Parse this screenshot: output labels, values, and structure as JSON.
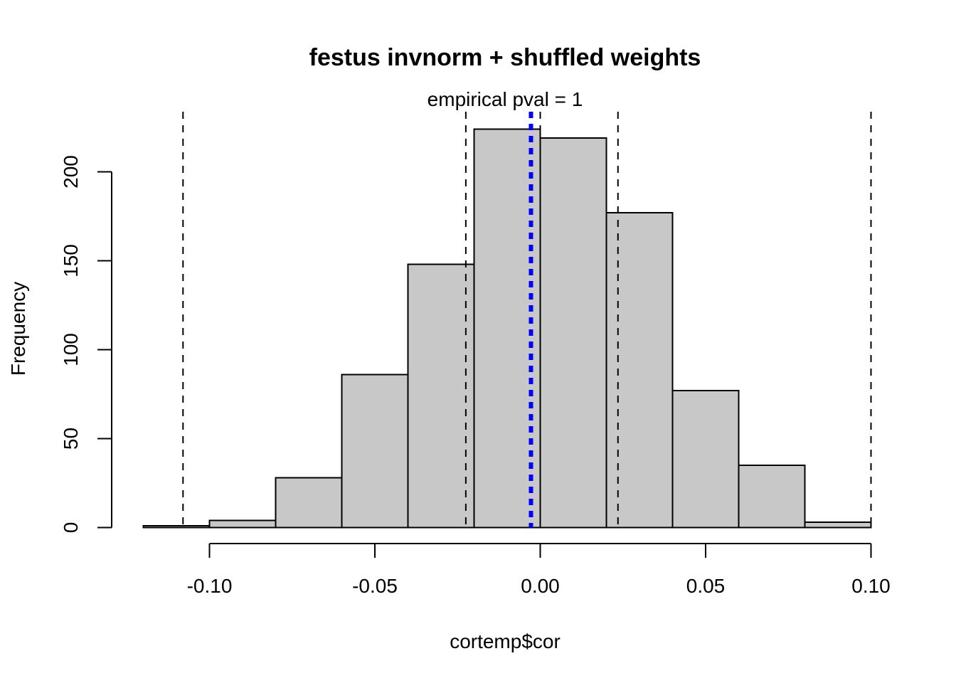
{
  "chart_data": {
    "type": "bar",
    "title": "festus invnorm + shuffled weights",
    "subtitle": "empirical pval = 1",
    "xlabel": "cortemp$cor",
    "ylabel": "Frequency",
    "bins": [
      {
        "start": -0.12,
        "end": -0.1,
        "count": 1
      },
      {
        "start": -0.1,
        "end": -0.08,
        "count": 4
      },
      {
        "start": -0.08,
        "end": -0.06,
        "count": 28
      },
      {
        "start": -0.06,
        "end": -0.04,
        "count": 86
      },
      {
        "start": -0.04,
        "end": -0.02,
        "count": 148
      },
      {
        "start": -0.02,
        "end": 0.0,
        "count": 224
      },
      {
        "start": 0.0,
        "end": 0.02,
        "count": 219
      },
      {
        "start": 0.02,
        "end": 0.04,
        "count": 177
      },
      {
        "start": 0.04,
        "end": 0.06,
        "count": 77
      },
      {
        "start": 0.06,
        "end": 0.08,
        "count": 35
      },
      {
        "start": 0.08,
        "end": 0.1,
        "count": 3
      }
    ],
    "xlim": [
      -0.1,
      0.1
    ],
    "ylim": [
      0,
      200
    ],
    "x_ticks": [
      -0.1,
      -0.05,
      0.0,
      0.05,
      0.1
    ],
    "x_tick_labels": [
      "-0.10",
      "-0.05",
      "0.00",
      "0.05",
      "0.10"
    ],
    "y_ticks": [
      0,
      50,
      100,
      150,
      200
    ],
    "y_tick_labels": [
      "0",
      "50",
      "100",
      "150",
      "200"
    ],
    "reference_lines": {
      "style": "dashed",
      "color": "#000000",
      "x": [
        -0.108,
        -0.0225,
        0.0,
        0.0235,
        0.1
      ]
    },
    "observed_line": {
      "style": "dotted",
      "color": "#0000ff",
      "x": -0.0028
    },
    "bar_color": "#c8c8c8",
    "grid": false,
    "legend": "none"
  }
}
